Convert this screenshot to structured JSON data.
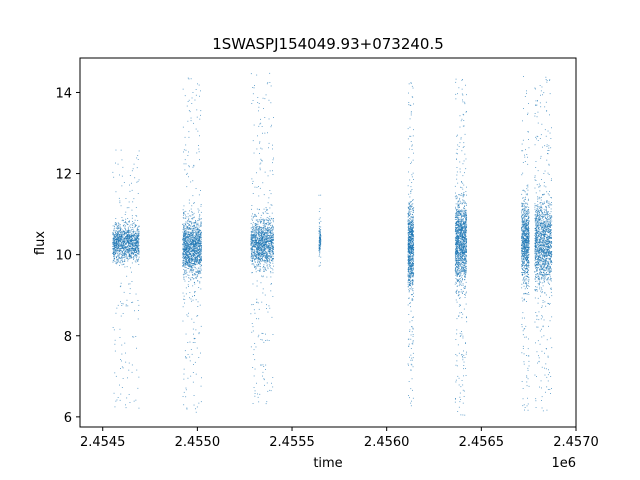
{
  "chart_data": {
    "type": "scatter",
    "title": "1SWASPJ154049.93+073240.5",
    "xlabel": "time",
    "ylabel": "flux",
    "x_offset_label": "1e6",
    "xlim": [
      2.45438,
      2.457
    ],
    "ylim": [
      5.75,
      14.85
    ],
    "x_ticks": [
      2.4545,
      2.455,
      2.4555,
      2.456,
      2.4565,
      2.457
    ],
    "x_tick_labels": [
      "2.4545",
      "2.4550",
      "2.4555",
      "2.4560",
      "2.4565",
      "2.4570"
    ],
    "y_ticks": [
      6,
      8,
      10,
      12,
      14
    ],
    "y_tick_labels": [
      "6",
      "8",
      "10",
      "12",
      "14"
    ],
    "grid": false,
    "marker_color": "#1f77b4",
    "clusters": [
      {
        "x_range": [
          2.45455,
          2.45469
        ],
        "center": 10.3,
        "core_half_height": 0.55,
        "y_extent": [
          6.2,
          12.6
        ],
        "point_count": 1300
      },
      {
        "x_range": [
          2.45492,
          2.45502
        ],
        "center": 10.2,
        "core_half_height": 0.8,
        "y_extent": [
          6.1,
          14.4
        ],
        "point_count": 1500
      },
      {
        "x_range": [
          2.45528,
          2.4554
        ],
        "center": 10.3,
        "core_half_height": 0.7,
        "y_extent": [
          6.3,
          14.5
        ],
        "point_count": 1400
      },
      {
        "x_range": [
          2.45564,
          2.45565
        ],
        "center": 10.35,
        "core_half_height": 0.4,
        "y_extent": [
          9.7,
          11.5
        ],
        "point_count": 120
      },
      {
        "x_range": [
          2.45611,
          2.45614
        ],
        "center": 10.2,
        "core_half_height": 1.2,
        "y_extent": [
          6.2,
          14.3
        ],
        "point_count": 900
      },
      {
        "x_range": [
          2.45636,
          2.45642
        ],
        "center": 10.3,
        "core_half_height": 1.2,
        "y_extent": [
          6.0,
          14.4
        ],
        "point_count": 1400
      },
      {
        "x_range": [
          2.45671,
          2.45675
        ],
        "center": 10.3,
        "core_half_height": 1.2,
        "y_extent": [
          6.1,
          14.5
        ],
        "point_count": 900
      },
      {
        "x_range": [
          2.45678,
          2.45687
        ],
        "center": 10.3,
        "core_half_height": 1.2,
        "y_extent": [
          6.1,
          14.4
        ],
        "point_count": 1500
      }
    ]
  }
}
